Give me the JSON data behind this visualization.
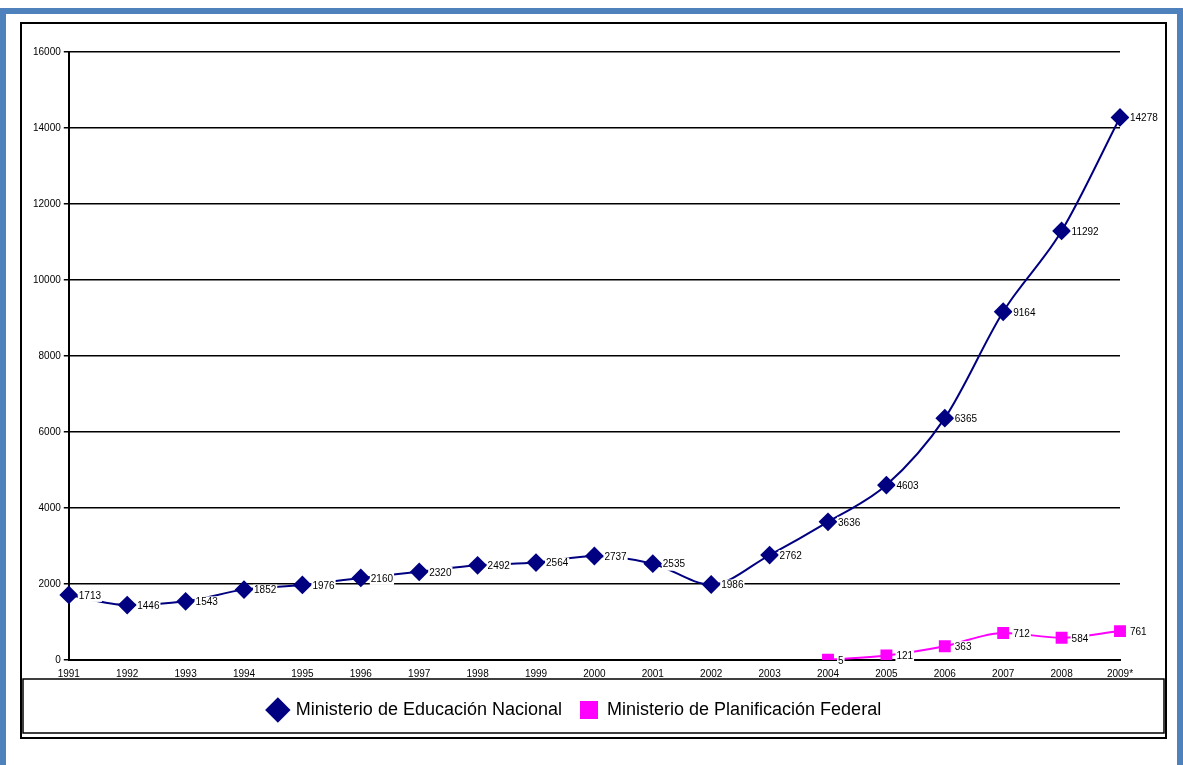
{
  "chart_data": {
    "type": "line",
    "categories": [
      "1991",
      "1992",
      "1993",
      "1994",
      "1995",
      "1996",
      "1997",
      "1998",
      "1999",
      "2000",
      "2001",
      "2002",
      "2003",
      "2004",
      "2005",
      "2006",
      "2007",
      "2008",
      "2009*"
    ],
    "series": [
      {
        "name": "Ministerio de Educación Nacional",
        "color": "#000080",
        "marker": "diamond",
        "values": [
          1713,
          1446,
          1543,
          1852,
          1976,
          2160,
          2320,
          2492,
          2564,
          2737,
          2535,
          1986,
          2762,
          3636,
          4603,
          6365,
          9164,
          11292,
          14278
        ]
      },
      {
        "name": "Ministerio de Planificación Federal",
        "color": "#ff00ff",
        "marker": "square",
        "values": [
          null,
          null,
          null,
          null,
          null,
          null,
          null,
          null,
          null,
          null,
          null,
          null,
          null,
          5,
          121,
          363,
          712,
          584,
          761
        ]
      }
    ],
    "ylim": [
      0,
      16000
    ],
    "yticks": [
      0,
      2000,
      4000,
      6000,
      8000,
      10000,
      12000,
      14000,
      16000
    ],
    "grid": "y",
    "legend": "bottom",
    "data_labels": true,
    "line_style": "solid"
  }
}
